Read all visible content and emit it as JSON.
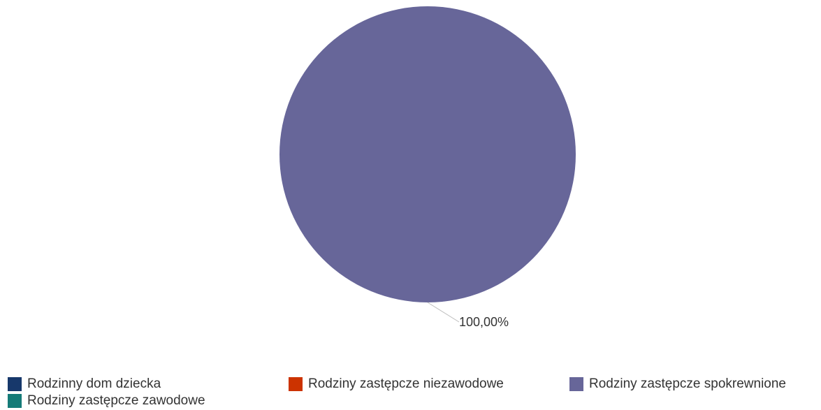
{
  "chart_data": {
    "type": "pie",
    "title": "",
    "categories": [
      "Rodzinny dom dziecka",
      "Rodziny zastępcze niezawodowe",
      "Rodziny zastępcze spokrewnione",
      "Rodziny zastępcze zawodowe"
    ],
    "values": [
      0,
      0,
      100,
      0
    ],
    "unit": "%",
    "colors": [
      "#17386b",
      "#cc3300",
      "#676699",
      "#157b78"
    ],
    "data_labels": [
      "",
      "",
      "100,00%",
      ""
    ],
    "legend": {
      "position": "bottom"
    }
  }
}
